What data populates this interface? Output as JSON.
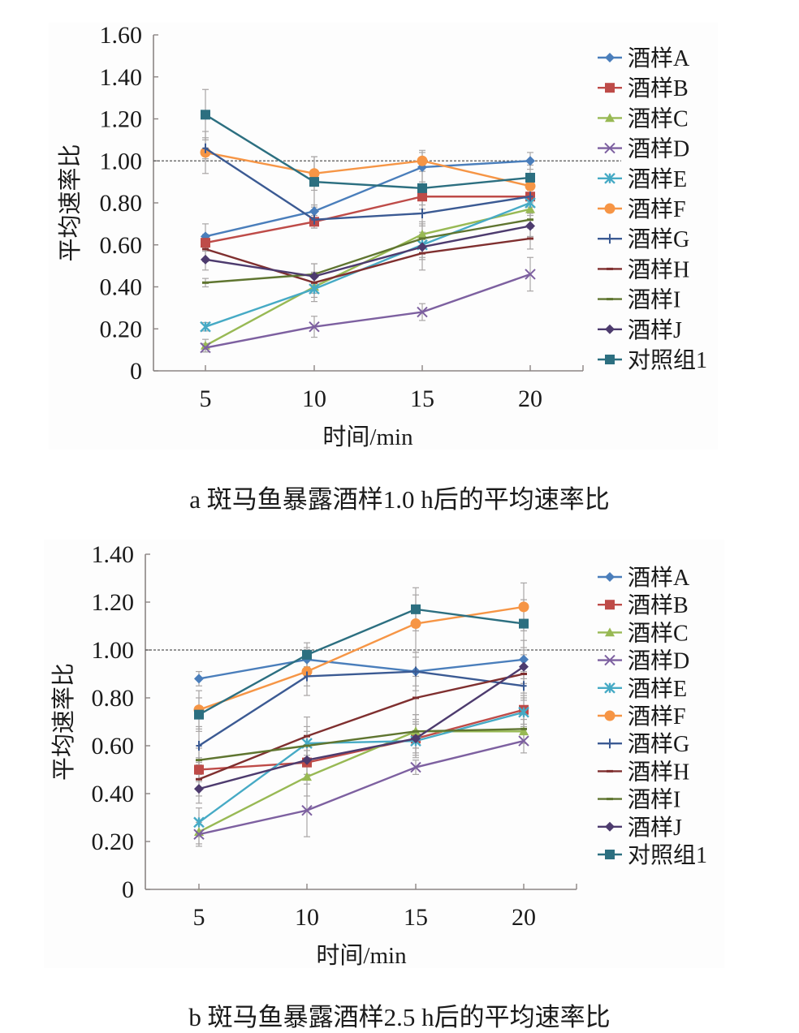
{
  "colors": {
    "A": "#4a7ebb",
    "B": "#be4b48",
    "C": "#98b954",
    "D": "#7d60a0",
    "E": "#46aac5",
    "F": "#f69545",
    "G": "#3b5a93",
    "H": "#7f2f2f",
    "I": "#5f7530",
    "J": "#4d3b6e",
    "Control": "#2c6f80"
  },
  "chart_data": [
    {
      "id": "a",
      "type": "line",
      "caption": "a 斑马鱼暴露酒样1.0 h后的平均速率比",
      "xlabel": "时间/min",
      "ylabel": "平均速率比",
      "x": [
        5,
        10,
        15,
        20
      ],
      "xticks": [
        "5",
        "10",
        "15",
        "20"
      ],
      "ylim": [
        0,
        1.6
      ],
      "yticks": [
        "0",
        "0.20",
        "0.40",
        "0.60",
        "0.80",
        "1.00",
        "1.20",
        "1.40",
        "1.60"
      ],
      "reference_line": 1.0,
      "grid": false,
      "legend_position": "right",
      "series": [
        {
          "key": "A",
          "name": "酒样A",
          "marker": "diamond",
          "values": [
            0.64,
            0.76,
            0.97,
            1.0
          ],
          "err": [
            0.06,
            0.03,
            0.07,
            0.04
          ]
        },
        {
          "key": "B",
          "name": "酒样B",
          "marker": "square",
          "values": [
            0.61,
            0.71,
            0.83,
            0.83
          ],
          "err": [
            0.04,
            0.03,
            0.04,
            0.03
          ]
        },
        {
          "key": "C",
          "name": "酒样C",
          "marker": "triangle",
          "values": [
            0.12,
            0.4,
            0.65,
            0.77
          ],
          "err": [
            0.03,
            0.05,
            0.06,
            0.05
          ]
        },
        {
          "key": "D",
          "name": "酒样D",
          "marker": "x",
          "values": [
            0.11,
            0.21,
            0.28,
            0.46
          ],
          "err": [
            0.02,
            0.05,
            0.04,
            0.08
          ]
        },
        {
          "key": "E",
          "name": "酒样E",
          "marker": "x-bar",
          "values": [
            0.21,
            0.39,
            0.6,
            0.8
          ],
          "err": [
            0.02,
            0.06,
            0.06,
            0.05
          ]
        },
        {
          "key": "F",
          "name": "酒样F",
          "marker": "circle",
          "values": [
            1.04,
            0.94,
            1.0,
            0.88
          ],
          "err": [
            0.1,
            0.08,
            0.05,
            0.04
          ]
        },
        {
          "key": "G",
          "name": "酒样G",
          "marker": "plus",
          "values": [
            1.06,
            0.72,
            0.75,
            0.83
          ],
          "err": [
            0.05,
            0.04,
            0.06,
            0.05
          ]
        },
        {
          "key": "H",
          "name": "酒样H",
          "marker": "dash",
          "values": [
            0.58,
            0.42,
            0.56,
            0.63
          ],
          "err": [
            0.06,
            0.05,
            0.08,
            0.05
          ]
        },
        {
          "key": "I",
          "name": "酒样I",
          "marker": "dash",
          "values": [
            0.42,
            0.46,
            0.63,
            0.72
          ],
          "err": [
            0.02,
            0.05,
            0.07,
            0.04
          ]
        },
        {
          "key": "J",
          "name": "酒样J",
          "marker": "diamond",
          "values": [
            0.53,
            0.45,
            0.59,
            0.69
          ],
          "err": [
            0.05,
            0.06,
            0.06,
            0.05
          ]
        },
        {
          "key": "Control",
          "name": "对照组1",
          "marker": "square",
          "values": [
            1.22,
            0.9,
            0.87,
            0.92
          ],
          "err": [
            0.12,
            0.12,
            0.1,
            0.06
          ]
        }
      ]
    },
    {
      "id": "b",
      "type": "line",
      "caption": "b 斑马鱼暴露酒样2.5 h后的平均速率比",
      "xlabel": "时间/min",
      "ylabel": "平均速率比",
      "x": [
        5,
        10,
        15,
        20
      ],
      "xticks": [
        "5",
        "10",
        "15",
        "20"
      ],
      "ylim": [
        0,
        1.4
      ],
      "yticks": [
        "0",
        "0.20",
        "0.40",
        "0.60",
        "0.80",
        "1.00",
        "1.20",
        "1.40"
      ],
      "reference_line": 1.0,
      "grid": false,
      "legend_position": "right",
      "series": [
        {
          "key": "A",
          "name": "酒样A",
          "marker": "diamond",
          "values": [
            0.88,
            0.96,
            0.91,
            0.96
          ],
          "err": [
            0.03,
            0.05,
            0.06,
            0.08
          ]
        },
        {
          "key": "B",
          "name": "酒样B",
          "marker": "square",
          "values": [
            0.5,
            0.53,
            0.63,
            0.75
          ],
          "err": [
            0.05,
            0.05,
            0.06,
            0.06
          ]
        },
        {
          "key": "C",
          "name": "酒样C",
          "marker": "triangle",
          "values": [
            0.24,
            0.47,
            0.66,
            0.66
          ],
          "err": [
            0.05,
            0.08,
            0.07,
            0.05
          ]
        },
        {
          "key": "D",
          "name": "酒样D",
          "marker": "x",
          "values": [
            0.23,
            0.33,
            0.51,
            0.62
          ],
          "err": [
            0.05,
            0.11,
            0.03,
            0.05
          ]
        },
        {
          "key": "E",
          "name": "酒样E",
          "marker": "x-bar",
          "values": [
            0.28,
            0.61,
            0.62,
            0.74
          ],
          "err": [
            0.06,
            0.07,
            0.07,
            0.06
          ]
        },
        {
          "key": "F",
          "name": "酒样F",
          "marker": "circle",
          "values": [
            0.75,
            0.91,
            1.11,
            1.18
          ],
          "err": [
            0.08,
            0.06,
            0.12,
            0.1
          ]
        },
        {
          "key": "G",
          "name": "酒样G",
          "marker": "plus",
          "values": [
            0.6,
            0.89,
            0.91,
            0.85
          ],
          "err": [
            0.08,
            0.08,
            0.08,
            0.06
          ]
        },
        {
          "key": "H",
          "name": "酒样H",
          "marker": "dash",
          "values": [
            0.46,
            0.64,
            0.8,
            0.9
          ],
          "err": [
            0.07,
            0.08,
            0.09,
            0.08
          ]
        },
        {
          "key": "I",
          "name": "酒样I",
          "marker": "dash",
          "values": [
            0.54,
            0.6,
            0.66,
            0.67
          ],
          "err": [
            0.05,
            0.06,
            0.07,
            0.06
          ]
        },
        {
          "key": "J",
          "name": "酒样J",
          "marker": "diamond",
          "values": [
            0.42,
            0.54,
            0.63,
            0.93
          ],
          "err": [
            0.06,
            0.06,
            0.07,
            0.07
          ]
        },
        {
          "key": "Control",
          "name": "对照组1",
          "marker": "square",
          "values": [
            0.73,
            0.98,
            1.17,
            1.11
          ],
          "err": [
            0.07,
            0.05,
            0.09,
            0.1
          ]
        }
      ]
    }
  ]
}
